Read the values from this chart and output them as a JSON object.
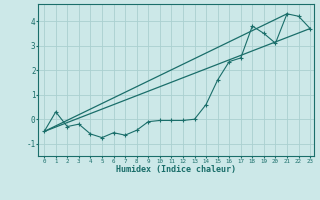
{
  "xlabel": "Humidex (Indice chaleur)",
  "ylabel": "",
  "xlim": [
    -0.5,
    23.3
  ],
  "ylim": [
    -1.5,
    4.7
  ],
  "bg_color": "#cce8e8",
  "line_color": "#1a6e6a",
  "grid_color": "#aad0d0",
  "x_ticks": [
    0,
    1,
    2,
    3,
    4,
    5,
    6,
    7,
    8,
    9,
    10,
    11,
    12,
    13,
    14,
    15,
    16,
    17,
    18,
    19,
    20,
    21,
    22,
    23
  ],
  "y_ticks": [
    -1,
    0,
    1,
    2,
    3,
    4
  ],
  "scatter_x": [
    0,
    1,
    2,
    3,
    4,
    5,
    6,
    7,
    8,
    9,
    10,
    11,
    12,
    13,
    14,
    15,
    16,
    17,
    18,
    19,
    20,
    21,
    22,
    23
  ],
  "scatter_y": [
    -0.5,
    0.3,
    -0.3,
    -0.2,
    -0.6,
    -0.75,
    -0.55,
    -0.65,
    -0.45,
    -0.1,
    -0.05,
    -0.05,
    -0.05,
    0.0,
    0.6,
    1.6,
    2.35,
    2.5,
    3.8,
    3.5,
    3.1,
    4.3,
    4.2,
    3.7
  ],
  "line1_x": [
    0,
    23
  ],
  "line1_y": [
    -0.5,
    3.7
  ],
  "line2_x": [
    0,
    21
  ],
  "line2_y": [
    -0.5,
    4.3
  ]
}
